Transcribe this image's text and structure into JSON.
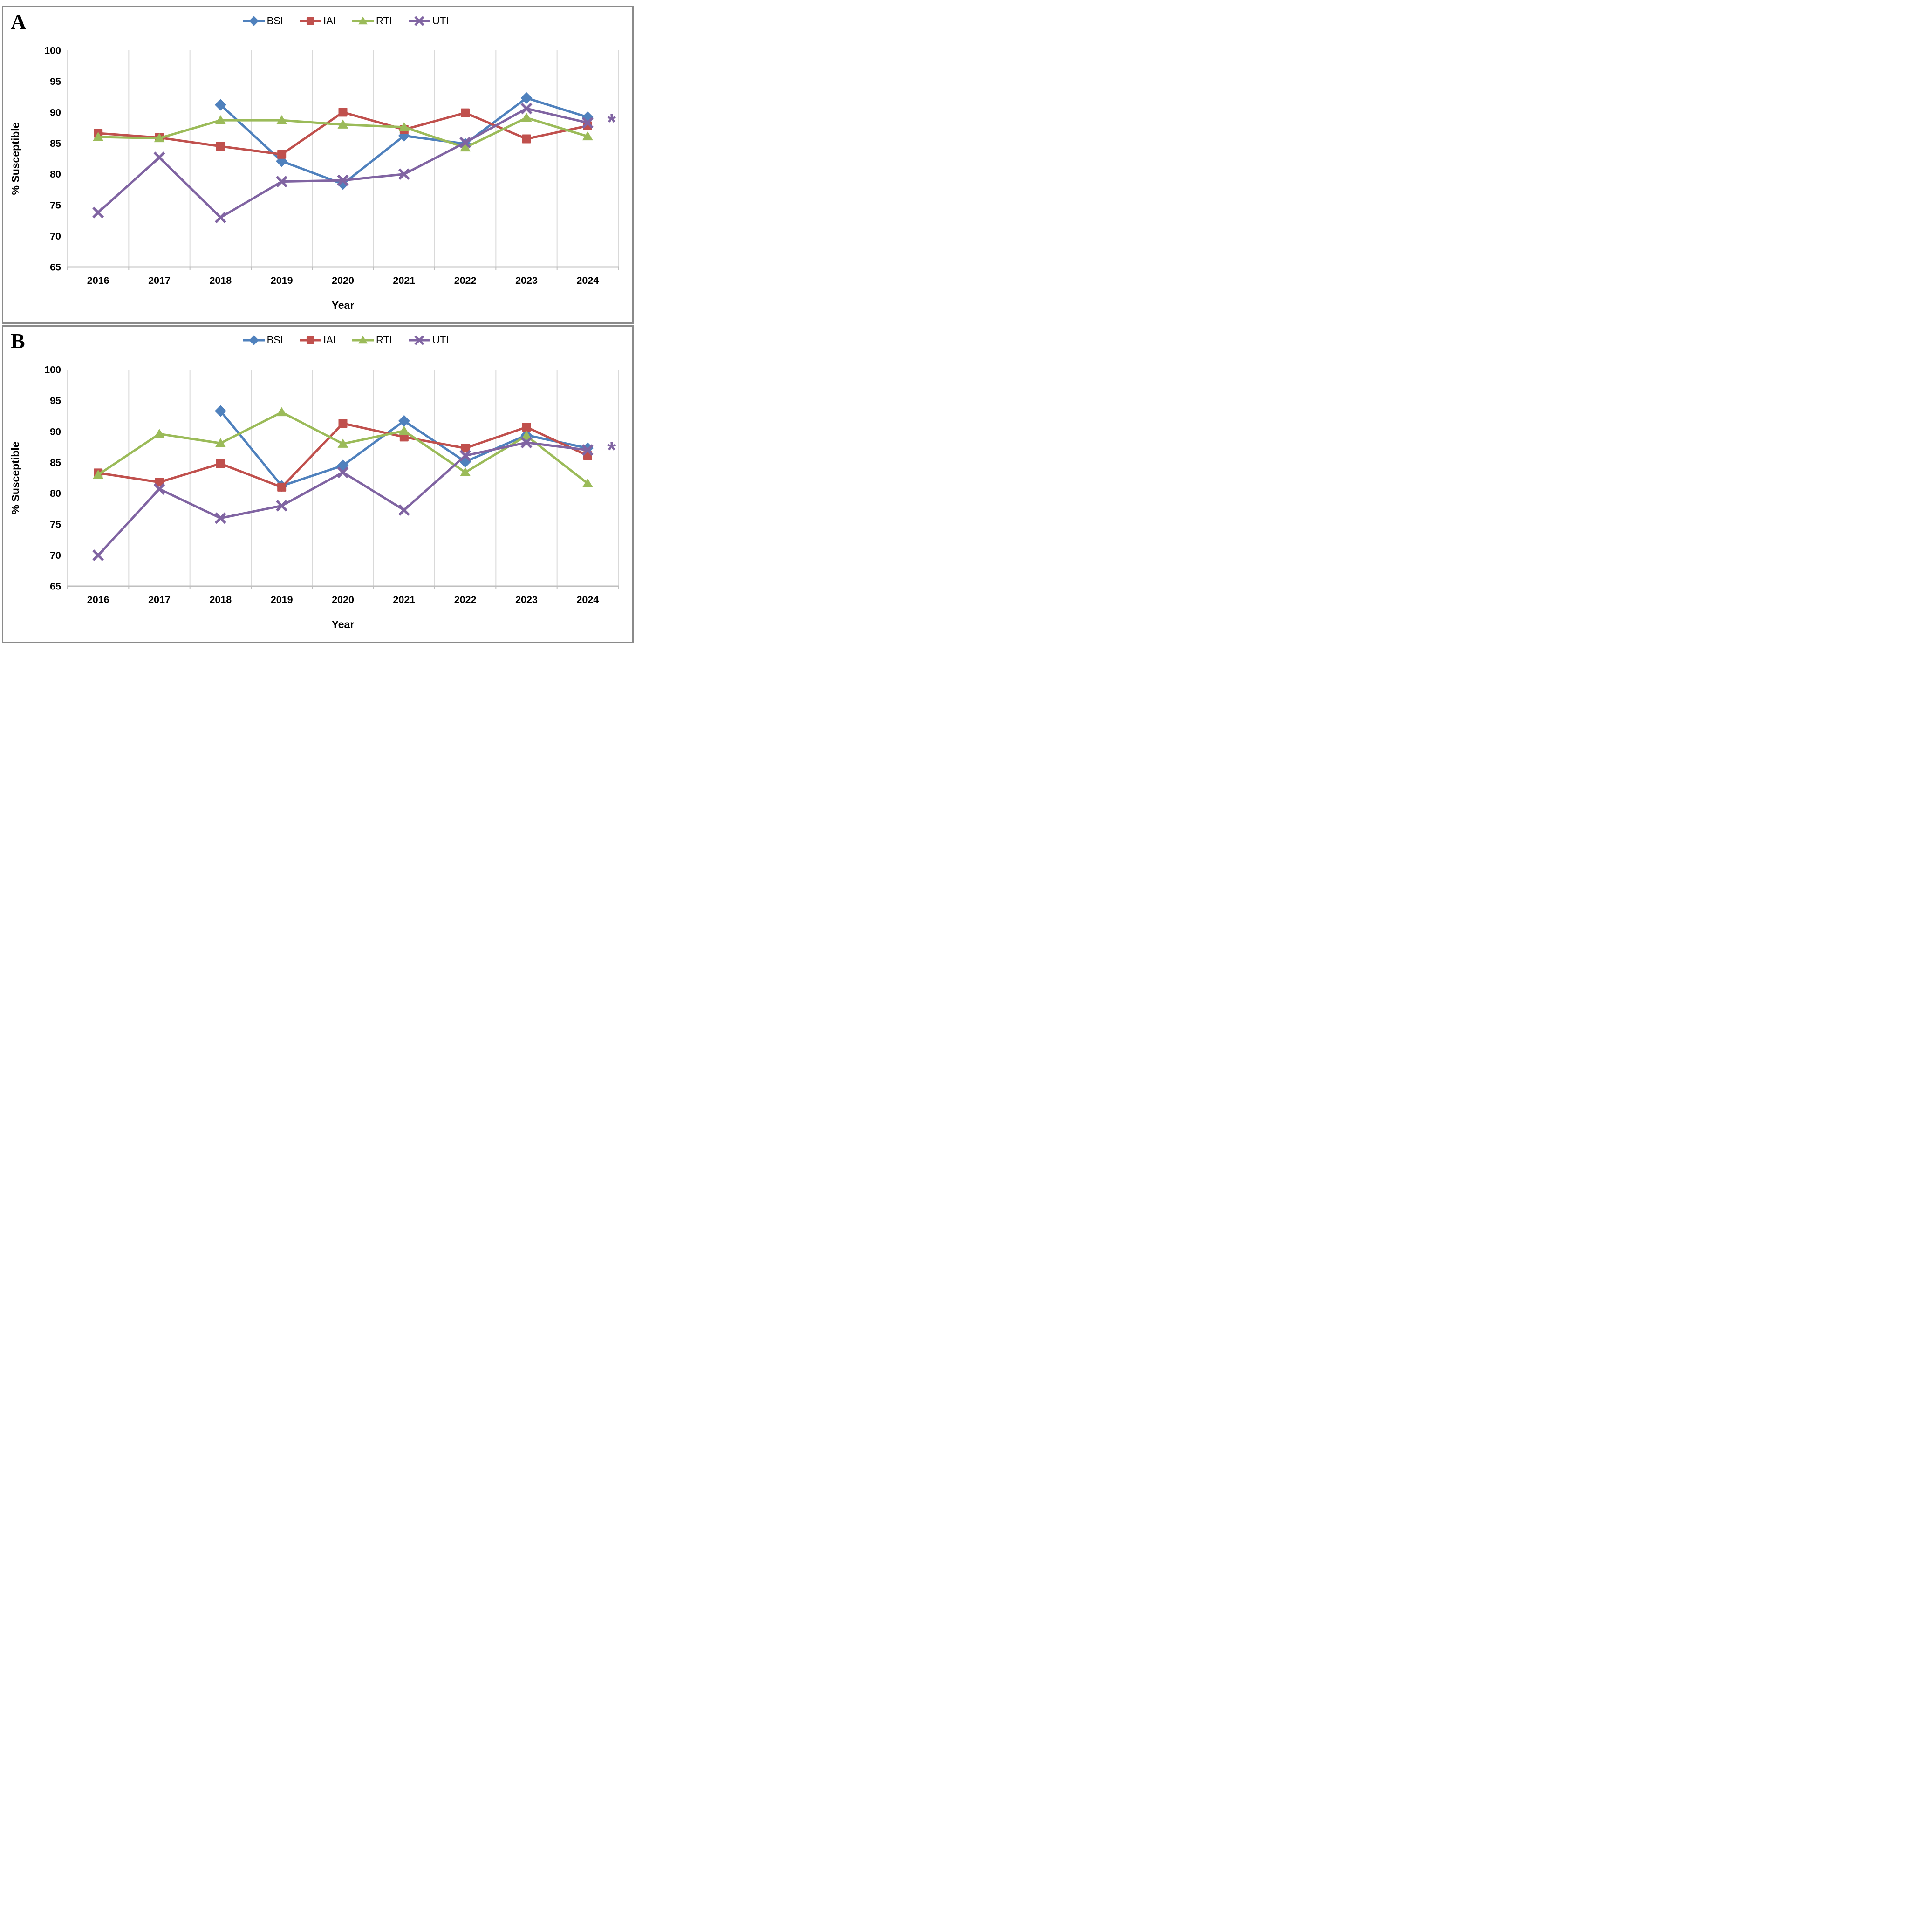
{
  "chart_data": [
    {
      "type": "line",
      "panel_label": "A",
      "xlabel": "Year",
      "ylabel": "% Susceptible",
      "x": [
        "2016",
        "2017",
        "2018",
        "2019",
        "2020",
        "2021",
        "2022",
        "2023",
        "2024"
      ],
      "ylim": [
        65,
        100
      ],
      "yticks": [
        100,
        95,
        90,
        85,
        80,
        75,
        70,
        65
      ],
      "grid": "vertical-only",
      "legend_position": "top-center",
      "colors": {
        "grid": "#D9D9D9",
        "axis": "#BFBFBF"
      },
      "series": [
        {
          "name": "BSI",
          "color": "#4F81BD",
          "marker": "diamond",
          "values": [
            null,
            null,
            91.2,
            82.1,
            78.4,
            86.2,
            84.9,
            92.3,
            89.2
          ]
        },
        {
          "name": "IAI",
          "color": "#C0504D",
          "marker": "square",
          "values": [
            86.6,
            85.9,
            84.5,
            83.2,
            90.0,
            87.2,
            89.9,
            85.7,
            87.8
          ]
        },
        {
          "name": "RTI",
          "color": "#9BBB59",
          "marker": "triangle",
          "values": [
            86.0,
            85.8,
            88.7,
            88.7,
            88.0,
            87.6,
            84.3,
            89.1,
            86.1
          ]
        },
        {
          "name": "UTI",
          "color": "#8064A2",
          "marker": "x",
          "values": [
            73.8,
            82.7,
            73.0,
            78.8,
            79.0,
            80.0,
            85.1,
            90.6,
            88.3
          ]
        }
      ],
      "annotation": {
        "text": "*",
        "color": "#8064A2",
        "value": 88.4
      }
    },
    {
      "type": "line",
      "panel_label": "B",
      "xlabel": "Year",
      "ylabel": "% Susceptible",
      "x": [
        "2016",
        "2017",
        "2018",
        "2019",
        "2020",
        "2021",
        "2022",
        "2023",
        "2024"
      ],
      "ylim": [
        65,
        100
      ],
      "yticks": [
        100,
        95,
        90,
        85,
        80,
        75,
        70,
        65
      ],
      "grid": "vertical-only",
      "legend_position": "top-center",
      "colors": {
        "grid": "#D9D9D9",
        "axis": "#BFBFBF"
      },
      "series": [
        {
          "name": "BSI",
          "color": "#4F81BD",
          "marker": "diamond",
          "values": [
            null,
            null,
            93.3,
            81.2,
            84.5,
            91.7,
            85.1,
            89.4,
            87.3
          ]
        },
        {
          "name": "IAI",
          "color": "#C0504D",
          "marker": "square",
          "values": [
            83.3,
            81.8,
            84.8,
            81.0,
            91.3,
            89.1,
            87.3,
            90.7,
            86.1
          ]
        },
        {
          "name": "RTI",
          "color": "#9BBB59",
          "marker": "triangle",
          "values": [
            83.0,
            89.6,
            88.1,
            93.1,
            88.0,
            90.1,
            83.4,
            89.3,
            81.6
          ]
        },
        {
          "name": "UTI",
          "color": "#8064A2",
          "marker": "x",
          "values": [
            70.0,
            80.7,
            76.0,
            78.0,
            83.4,
            77.3,
            86.1,
            88.2,
            87.0
          ]
        }
      ],
      "annotation": {
        "text": "*",
        "color": "#8064A2",
        "value": 87.0
      }
    }
  ]
}
